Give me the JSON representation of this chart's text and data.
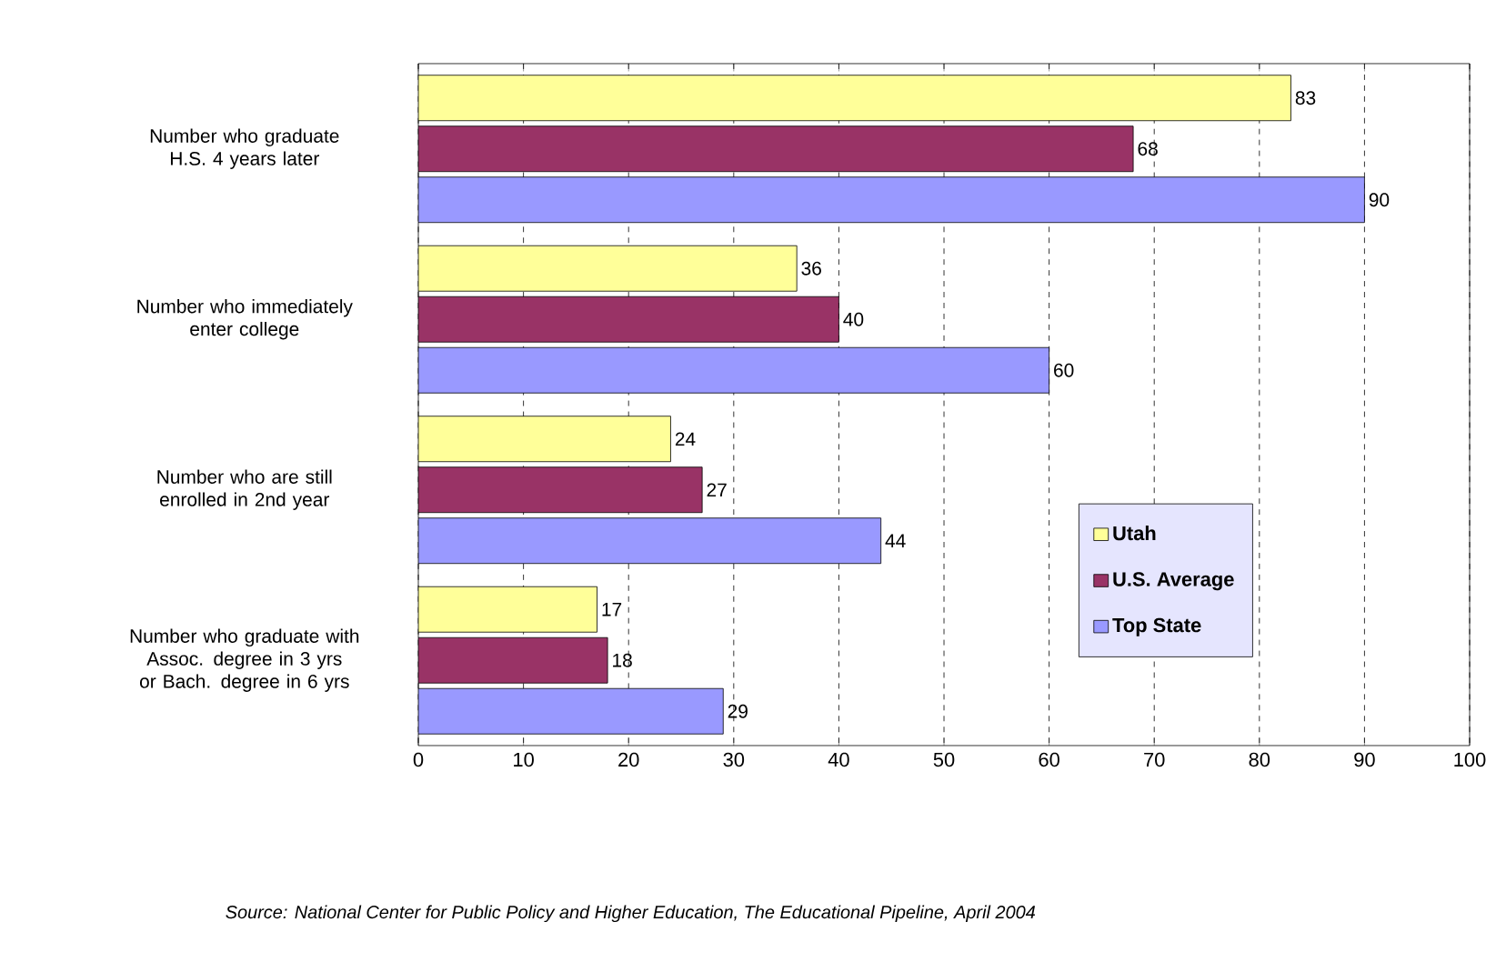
{
  "chart_data": {
    "type": "bar",
    "orientation": "horizontal",
    "categories": [
      "Number who graduate H.S. 4 years later",
      "Number who immediately enter college",
      "Number who are still enrolled in 2nd year",
      "Number who graduate with Assoc. degree in 3 yrs or Bach. degree in 6 yrs"
    ],
    "series": [
      {
        "name": "Utah",
        "color": "#ffff99",
        "values": [
          83,
          36,
          24,
          17
        ]
      },
      {
        "name": "U.S. Average",
        "color": "#993366",
        "values": [
          68,
          40,
          27,
          18
        ]
      },
      {
        "name": "Top State",
        "color": "#9999ff",
        "values": [
          90,
          60,
          44,
          29
        ]
      }
    ],
    "xlim": [
      0,
      100
    ],
    "xticks": [
      0,
      10,
      20,
      30,
      40,
      50,
      60,
      70,
      80,
      90,
      100
    ],
    "grid": "x",
    "legend": "bottom right",
    "data_labels": true,
    "annotations": [
      "Source: National Center for Public Policy and Higher Education, The Educational Pipeline, April 2004"
    ]
  }
}
